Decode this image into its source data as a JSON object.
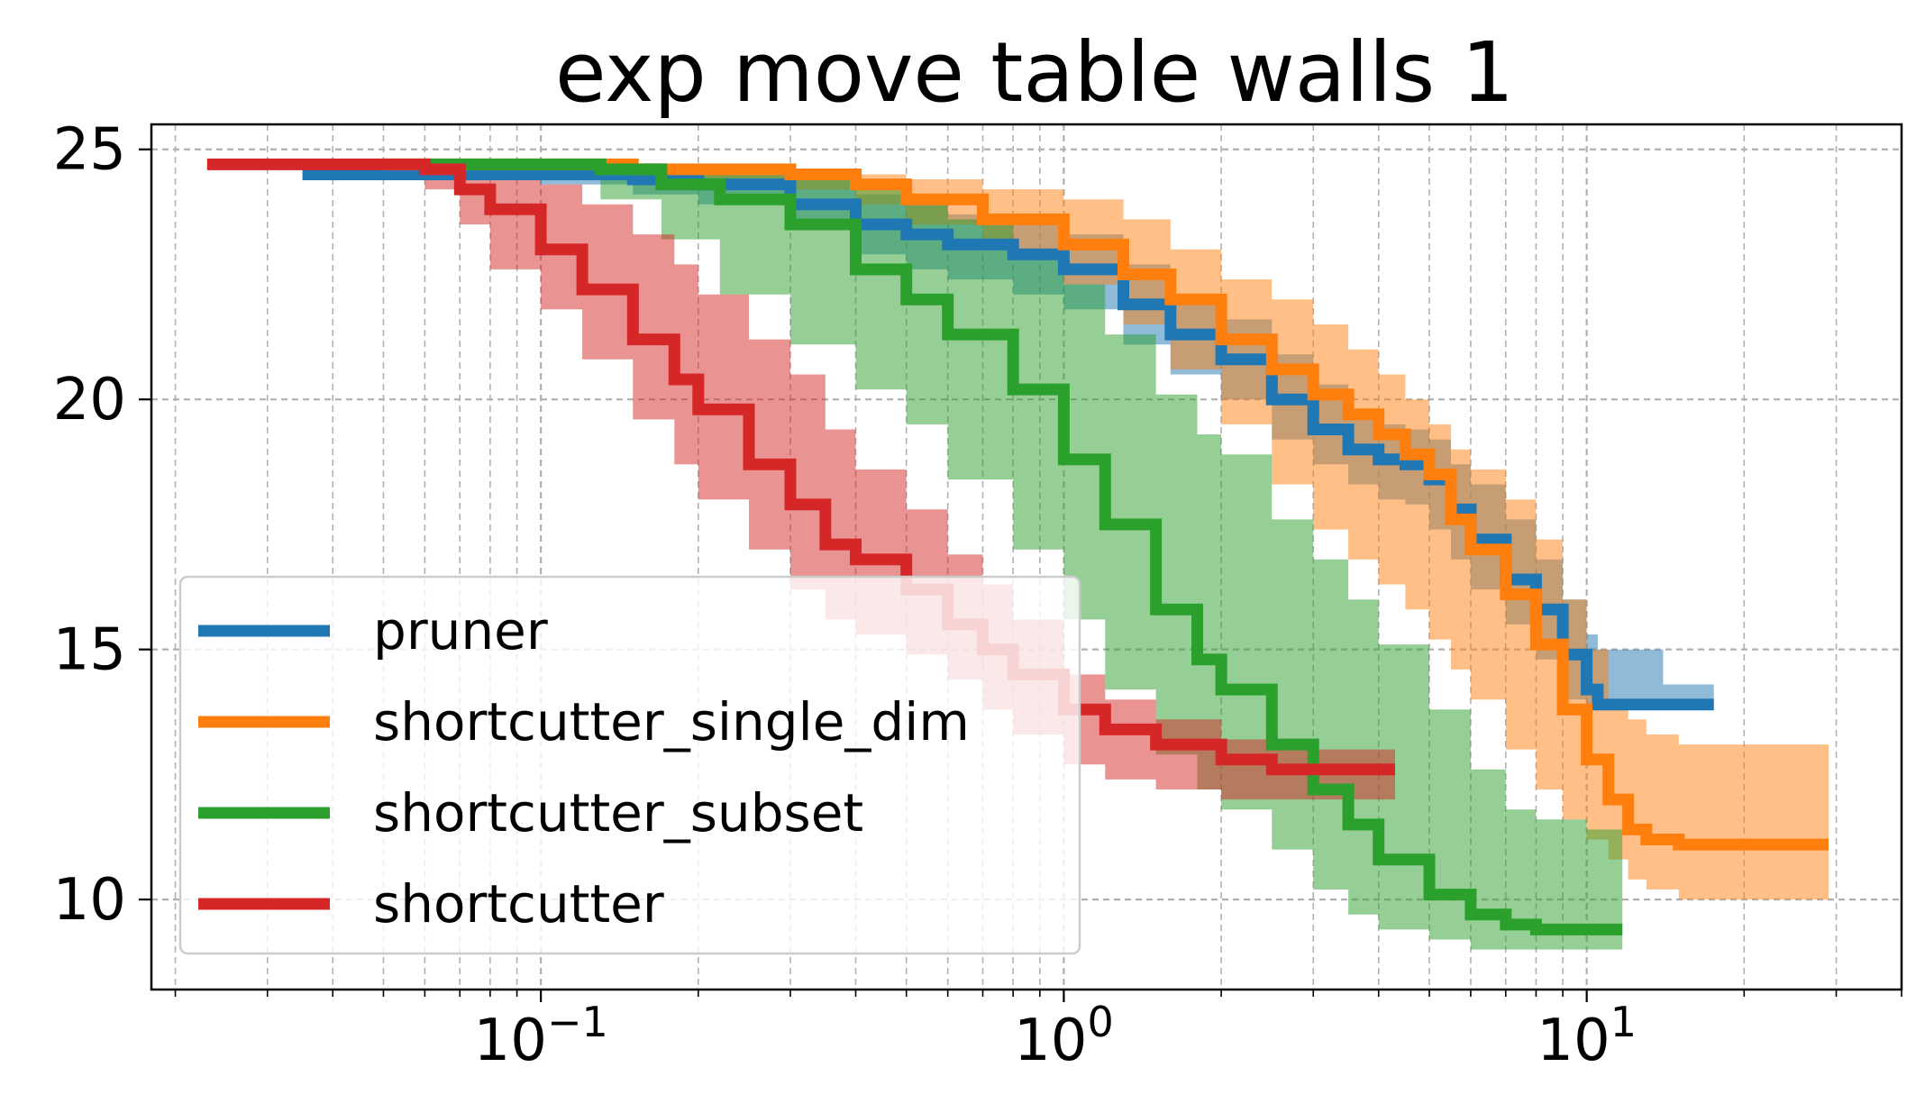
{
  "chart_data": {
    "type": "line",
    "title": "exp move table walls 1",
    "xlabel": "",
    "ylabel": "",
    "xscale": "log",
    "xlim": [
      0.018,
      40
    ],
    "ylim": [
      8.2,
      25.5
    ],
    "grid": true,
    "grid_minor": true,
    "legend_position": "lower-left",
    "x_ticks": [
      {
        "value": 0.1,
        "base": "10",
        "exp": "−1"
      },
      {
        "value": 1,
        "base": "10",
        "exp": "0"
      },
      {
        "value": 10,
        "base": "10",
        "exp": "1"
      }
    ],
    "y_ticks": [
      {
        "value": 10,
        "label": "10"
      },
      {
        "value": 15,
        "label": "15"
      },
      {
        "value": 20,
        "label": "20"
      },
      {
        "value": 25,
        "label": "25"
      }
    ],
    "series": [
      {
        "name": "pruner",
        "color": "#1f77b4",
        "x": [
          0.035,
          0.05,
          0.1,
          0.15,
          0.2,
          0.3,
          0.4,
          0.5,
          0.6,
          0.8,
          1.0,
          1.3,
          1.6,
          2.0,
          2.5,
          3.0,
          3.5,
          4.0,
          4.5,
          5.0,
          5.5,
          6.0,
          7.0,
          8.0,
          9.0,
          10.0,
          10.5,
          14.0,
          17.5
        ],
        "y": [
          24.5,
          24.5,
          24.5,
          24.4,
          24.3,
          23.9,
          23.5,
          23.3,
          23.1,
          22.9,
          22.6,
          21.9,
          21.3,
          20.8,
          20.0,
          19.4,
          19.0,
          18.8,
          18.7,
          18.4,
          17.8,
          17.2,
          16.4,
          15.8,
          14.9,
          14.2,
          13.9,
          13.9,
          13.9
        ],
        "lower": [
          24.5,
          24.4,
          24.3,
          24.1,
          23.9,
          23.4,
          22.9,
          22.6,
          22.4,
          22.1,
          21.8,
          21.1,
          20.5,
          20.0,
          19.2,
          18.7,
          18.3,
          18.0,
          17.9,
          17.4,
          16.8,
          16.2,
          15.5,
          14.8,
          14.0,
          13.9,
          13.9,
          13.9,
          13.9
        ],
        "upper": [
          24.6,
          24.6,
          24.6,
          24.6,
          24.6,
          24.4,
          24.1,
          23.9,
          23.7,
          23.5,
          23.3,
          22.7,
          22.1,
          21.6,
          20.9,
          20.3,
          19.7,
          19.5,
          19.4,
          19.2,
          18.7,
          18.3,
          17.6,
          16.8,
          16.0,
          15.3,
          15.0,
          14.3,
          13.9
        ]
      },
      {
        "name": "shortcutter_single_dim",
        "color": "#ff7f0e",
        "x": [
          0.05,
          0.1,
          0.15,
          0.2,
          0.3,
          0.4,
          0.5,
          0.7,
          1.0,
          1.3,
          1.6,
          2.0,
          2.5,
          3.0,
          3.5,
          4.0,
          4.5,
          5.0,
          5.5,
          6.0,
          7.0,
          8.0,
          9.0,
          10.0,
          11.0,
          12.0,
          13.0,
          15.0,
          20.0,
          29.0
        ],
        "y": [
          24.7,
          24.7,
          24.6,
          24.6,
          24.5,
          24.3,
          24.0,
          23.6,
          23.1,
          22.5,
          22.0,
          21.2,
          20.6,
          20.1,
          19.7,
          19.3,
          18.9,
          18.5,
          17.6,
          17.0,
          16.1,
          15.1,
          13.8,
          12.8,
          12.0,
          11.4,
          11.2,
          11.1,
          11.1,
          11.1
        ],
        "lower": [
          24.7,
          24.6,
          24.5,
          24.4,
          24.2,
          23.9,
          23.5,
          23.0,
          22.3,
          21.5,
          20.6,
          19.5,
          18.3,
          17.4,
          16.8,
          16.3,
          15.8,
          15.2,
          14.6,
          14.0,
          13.0,
          12.2,
          11.6,
          11.2,
          10.8,
          10.4,
          10.2,
          10.0,
          10.0,
          10.0
        ],
        "upper": [
          24.7,
          24.7,
          24.7,
          24.7,
          24.6,
          24.5,
          24.4,
          24.2,
          24.0,
          23.6,
          23.0,
          22.4,
          22.0,
          21.5,
          21.0,
          20.5,
          20.0,
          19.5,
          19.0,
          18.6,
          18.0,
          17.2,
          16.0,
          15.0,
          14.0,
          13.6,
          13.3,
          13.1,
          13.1,
          13.1
        ]
      },
      {
        "name": "shortcutter_subset",
        "color": "#2ca02c",
        "x": [
          0.06,
          0.1,
          0.13,
          0.17,
          0.22,
          0.3,
          0.4,
          0.5,
          0.6,
          0.8,
          1.0,
          1.2,
          1.5,
          1.8,
          2.0,
          2.5,
          3.0,
          3.5,
          4.0,
          5.0,
          6.0,
          7.0,
          8.0,
          10.0,
          11.7
        ],
        "y": [
          24.7,
          24.7,
          24.6,
          24.3,
          24.0,
          23.5,
          22.6,
          22.0,
          21.3,
          20.2,
          18.8,
          17.5,
          15.8,
          14.8,
          14.2,
          13.1,
          12.2,
          11.5,
          10.8,
          10.1,
          9.7,
          9.5,
          9.4,
          9.4,
          9.4
        ],
        "lower": [
          24.7,
          24.5,
          24.0,
          23.2,
          22.1,
          21.1,
          20.2,
          19.5,
          18.4,
          17.0,
          15.6,
          14.2,
          12.9,
          12.2,
          11.8,
          11.0,
          10.2,
          9.7,
          9.4,
          9.2,
          9.0,
          9.0,
          9.0,
          9.0,
          9.0
        ],
        "upper": [
          24.7,
          24.7,
          24.7,
          24.7,
          24.6,
          24.4,
          24.2,
          24.0,
          23.6,
          22.9,
          22.3,
          21.3,
          20.1,
          19.3,
          18.9,
          17.6,
          16.8,
          16.0,
          15.1,
          13.8,
          12.6,
          11.8,
          11.6,
          11.4,
          11.3
        ]
      },
      {
        "name": "shortcutter",
        "color": "#d62728",
        "x": [
          0.023,
          0.04,
          0.06,
          0.07,
          0.08,
          0.1,
          0.12,
          0.15,
          0.18,
          0.2,
          0.25,
          0.3,
          0.35,
          0.4,
          0.5,
          0.6,
          0.7,
          0.8,
          1.0,
          1.2,
          1.5,
          2.0,
          2.5,
          3.0,
          4.3
        ],
        "y": [
          24.7,
          24.7,
          24.6,
          24.2,
          23.8,
          23.0,
          22.2,
          21.2,
          20.4,
          19.8,
          18.7,
          17.9,
          17.1,
          16.8,
          16.2,
          15.5,
          15.0,
          14.5,
          13.8,
          13.4,
          13.1,
          12.8,
          12.6,
          12.6,
          12.6
        ],
        "lower": [
          24.7,
          24.5,
          24.2,
          23.5,
          22.6,
          21.8,
          20.8,
          19.6,
          18.7,
          18.0,
          17.0,
          16.2,
          15.6,
          15.3,
          14.9,
          14.4,
          13.8,
          13.3,
          12.7,
          12.4,
          12.2,
          12.0,
          12.0,
          12.0,
          12.0
        ],
        "upper": [
          24.7,
          24.7,
          24.7,
          24.6,
          24.5,
          24.3,
          23.9,
          23.3,
          22.7,
          22.1,
          21.2,
          20.5,
          19.4,
          18.6,
          17.8,
          16.9,
          16.3,
          15.6,
          14.5,
          14.0,
          13.6,
          13.2,
          13.1,
          13.0,
          13.0
        ]
      }
    ]
  }
}
